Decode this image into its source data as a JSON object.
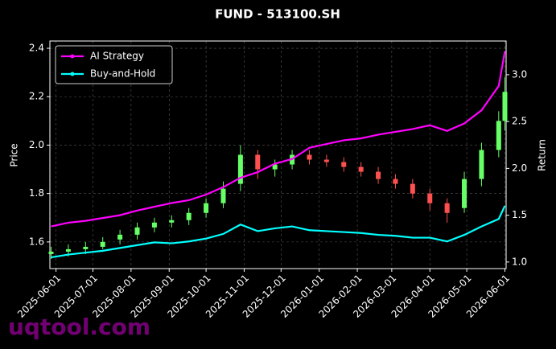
{
  "chart_data": {
    "type": "candlestick",
    "title": "FUND - 513100.SH",
    "ylabel": "Price",
    "y2label": "Return",
    "watermark": "uqtool.com",
    "x": [
      "2025-05-28",
      "2025-06-11",
      "2025-06-25",
      "2025-07-09",
      "2025-07-23",
      "2025-08-06",
      "2025-08-20",
      "2025-09-03",
      "2025-09-17",
      "2025-10-01",
      "2025-10-15",
      "2025-10-29",
      "2025-11-12",
      "2025-11-26",
      "2025-12-10",
      "2025-12-24",
      "2026-01-07",
      "2026-01-21",
      "2026-02-04",
      "2026-02-18",
      "2026-03-04",
      "2026-03-18",
      "2026-04-01",
      "2026-04-15",
      "2026-04-29",
      "2026-05-13",
      "2026-05-27",
      "2026-06-01"
    ],
    "open": [
      1.55,
      1.56,
      1.57,
      1.58,
      1.61,
      1.63,
      1.66,
      1.68,
      1.69,
      1.72,
      1.76,
      1.84,
      1.96,
      1.9,
      1.92,
      1.96,
      1.94,
      1.93,
      1.91,
      1.89,
      1.86,
      1.84,
      1.8,
      1.76,
      1.74,
      1.86,
      1.98,
      2.1
    ],
    "high": [
      1.58,
      1.59,
      1.6,
      1.62,
      1.65,
      1.68,
      1.7,
      1.71,
      1.74,
      1.78,
      1.85,
      2.0,
      1.98,
      1.94,
      1.98,
      1.98,
      1.96,
      1.95,
      1.93,
      1.91,
      1.88,
      1.86,
      1.82,
      1.78,
      1.89,
      2.01,
      2.14,
      2.28
    ],
    "low": [
      1.53,
      1.54,
      1.55,
      1.57,
      1.59,
      1.61,
      1.64,
      1.66,
      1.67,
      1.7,
      1.74,
      1.81,
      1.86,
      1.87,
      1.9,
      1.92,
      1.91,
      1.89,
      1.87,
      1.84,
      1.82,
      1.78,
      1.73,
      1.68,
      1.72,
      1.83,
      1.95,
      2.06
    ],
    "close": [
      1.56,
      1.57,
      1.58,
      1.6,
      1.63,
      1.66,
      1.68,
      1.69,
      1.72,
      1.76,
      1.82,
      1.96,
      1.9,
      1.92,
      1.96,
      1.94,
      1.93,
      1.91,
      1.89,
      1.86,
      1.84,
      1.8,
      1.76,
      1.72,
      1.86,
      1.98,
      2.1,
      2.22
    ],
    "up_color": "#66ff66",
    "down_color": "#ff5050",
    "series": [
      {
        "name": "AI Strategy",
        "color": "#ff00ff",
        "axis": "y2",
        "values": [
          1.38,
          1.42,
          1.44,
          1.47,
          1.5,
          1.55,
          1.59,
          1.63,
          1.66,
          1.72,
          1.8,
          1.9,
          1.96,
          2.05,
          2.1,
          2.22,
          2.26,
          2.3,
          2.32,
          2.36,
          2.39,
          2.42,
          2.46,
          2.4,
          2.48,
          2.62,
          2.88,
          3.25
        ]
      },
      {
        "name": "Buy-and-Hold",
        "color": "#00ffff",
        "axis": "y2",
        "values": [
          1.05,
          1.08,
          1.1,
          1.12,
          1.15,
          1.18,
          1.21,
          1.2,
          1.22,
          1.25,
          1.3,
          1.4,
          1.33,
          1.36,
          1.38,
          1.34,
          1.33,
          1.32,
          1.31,
          1.29,
          1.28,
          1.26,
          1.26,
          1.22,
          1.29,
          1.38,
          1.46,
          1.6
        ]
      }
    ],
    "xlim": [
      "2025-05-27",
      "2026-06-02"
    ],
    "xticks": [
      "2025-06-01",
      "2025-07-01",
      "2025-08-01",
      "2025-09-01",
      "2025-10-01",
      "2025-11-01",
      "2025-12-01",
      "2026-01-01",
      "2026-02-01",
      "2026-03-01",
      "2026-04-01",
      "2026-05-01",
      "2026-06-01"
    ],
    "ylim": [
      1.49,
      2.43
    ],
    "yticks": [
      1.6,
      1.8,
      {
        "value": 2,
        "label": "2.0"
      },
      2.2,
      2.4
    ],
    "y2lim": [
      0.93,
      3.36
    ],
    "y2ticks": [
      {
        "value": 1,
        "label": "1.0"
      },
      1.5,
      {
        "value": 2,
        "label": "2.0"
      },
      2.5,
      {
        "value": 3,
        "label": "3.0"
      }
    ],
    "grid": true,
    "legend": "upper left"
  }
}
